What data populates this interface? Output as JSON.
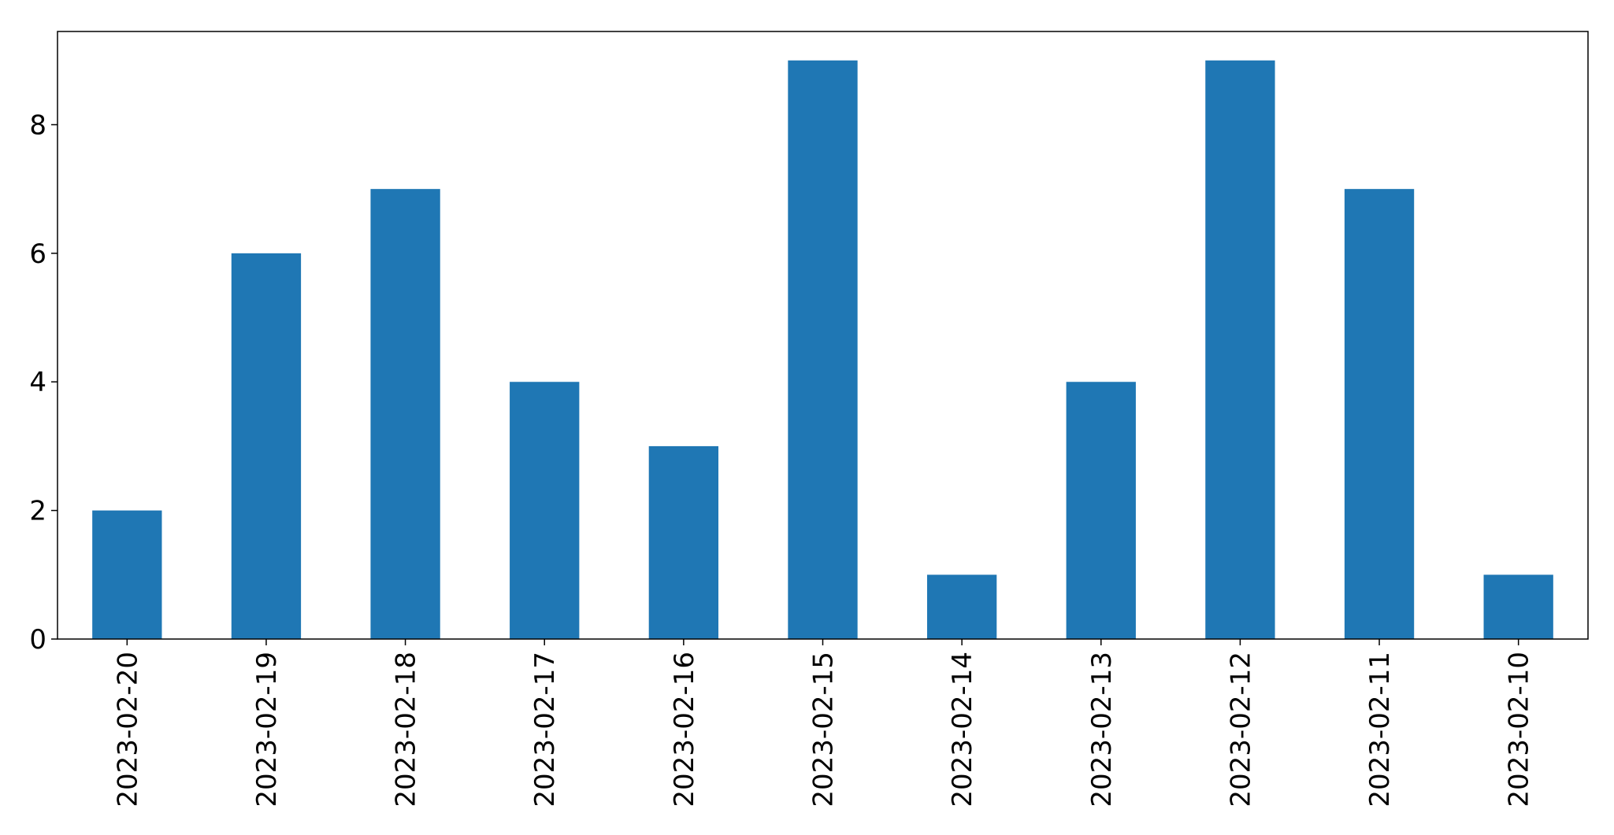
{
  "chart_data": {
    "type": "bar",
    "title": "",
    "xlabel": "",
    "ylabel": "",
    "categories": [
      "2023-02-20",
      "2023-02-19",
      "2023-02-18",
      "2023-02-17",
      "2023-02-16",
      "2023-02-15",
      "2023-02-14",
      "2023-02-13",
      "2023-02-12",
      "2023-02-11",
      "2023-02-10"
    ],
    "values": [
      2,
      6,
      7,
      4,
      3,
      9,
      1,
      4,
      9,
      7,
      1
    ],
    "ylim": [
      0,
      9.45
    ],
    "yticks": [
      0,
      2,
      4,
      6,
      8
    ],
    "grid": false,
    "legend": "none",
    "bar_color": "#1f77b4"
  }
}
